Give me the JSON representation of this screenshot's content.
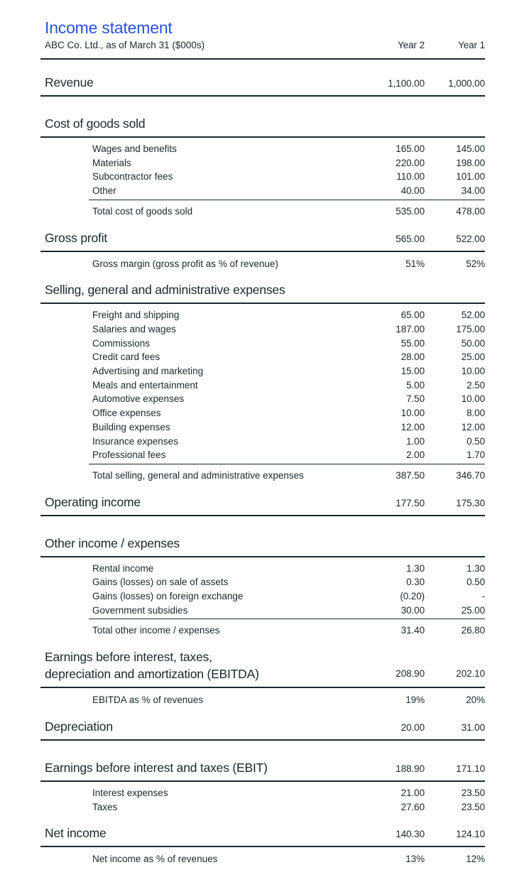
{
  "accent_color": "#2b4fdf",
  "text_color": "#182930",
  "header": {
    "title": "Income statement",
    "subtitle": "ABC Co. Ltd., as of March 31 ($000s)",
    "col_year2": "Year 2",
    "col_year1": "Year 1"
  },
  "rows": [
    {
      "type": "statement",
      "label": "Revenue",
      "y2": "1,100.00",
      "y1": "1,000.00"
    },
    {
      "type": "header",
      "label": "Cost of goods sold"
    },
    {
      "type": "detail",
      "label": "Wages and benefits",
      "y2": "165.00",
      "y1": "145.00"
    },
    {
      "type": "detail",
      "label": "Materials",
      "y2": "220.00",
      "y1": "198.00"
    },
    {
      "type": "detail",
      "label": "Subcontractor fees",
      "y2": "110.00",
      "y1": "101.00"
    },
    {
      "type": "detail",
      "label": "Other",
      "y2": "40.00",
      "y1": "34.00"
    },
    {
      "type": "total",
      "label": "Total cost of goods sold",
      "y2": "535.00",
      "y1": "478.00"
    },
    {
      "type": "statement",
      "label": "Gross profit",
      "y2": "565.00",
      "y1": "522.00"
    },
    {
      "type": "percent",
      "label": "Gross margin (gross profit as % of revenue)",
      "y2": "51%",
      "y1": "52%"
    },
    {
      "type": "header",
      "label": "Selling, general and administrative expenses"
    },
    {
      "type": "detail",
      "label": "Freight and shipping",
      "y2": "65.00",
      "y1": "52.00"
    },
    {
      "type": "detail",
      "label": "Salaries and wages",
      "y2": "187.00",
      "y1": "175.00"
    },
    {
      "type": "detail",
      "label": "Commissions",
      "y2": "55.00",
      "y1": "50.00"
    },
    {
      "type": "detail",
      "label": "Credit card fees",
      "y2": "28.00",
      "y1": "25.00"
    },
    {
      "type": "detail",
      "label": "Advertising and marketing",
      "y2": "15.00",
      "y1": "10.00"
    },
    {
      "type": "detail",
      "label": "Meals and entertainment",
      "y2": "5.00",
      "y1": "2.50"
    },
    {
      "type": "detail",
      "label": "Automotive expenses",
      "y2": "7.50",
      "y1": "10.00"
    },
    {
      "type": "detail",
      "label": "Office expenses",
      "y2": "10.00",
      "y1": "8.00"
    },
    {
      "type": "detail",
      "label": "Building expenses",
      "y2": "12.00",
      "y1": "12.00"
    },
    {
      "type": "detail",
      "label": "Insurance expenses",
      "y2": "1.00",
      "y1": "0.50"
    },
    {
      "type": "detail",
      "label": "Professional fees",
      "y2": "2.00",
      "y1": "1.70"
    },
    {
      "type": "total",
      "label": "Total selling, general and administrative expenses",
      "y2": "387.50",
      "y1": "346.70"
    },
    {
      "type": "statement",
      "label": "Operating income",
      "y2": "177.50",
      "y1": "175.30"
    },
    {
      "type": "header",
      "label": "Other income / expenses"
    },
    {
      "type": "detail",
      "label": "Rental income",
      "y2": "1.30",
      "y1": "1.30"
    },
    {
      "type": "detail",
      "label": "Gains (losses) on sale of assets",
      "y2": "0.30",
      "y1": "0.50"
    },
    {
      "type": "detail",
      "label": "Gains (losses) on foreign exchange",
      "y2": "(0.20)",
      "y1": "-"
    },
    {
      "type": "detail",
      "label": "Government subsidies",
      "y2": "30.00",
      "y1": "25.00"
    },
    {
      "type": "total",
      "label": "Total other income / expenses",
      "y2": "31.40",
      "y1": "26.80"
    },
    {
      "type": "statement2",
      "label": [
        "Earnings before interest, taxes,",
        "depreciation and amortization (EBITDA)"
      ],
      "y2": "208.90",
      "y1": "202.10"
    },
    {
      "type": "percent",
      "label": "EBITDA as % of revenues",
      "y2": "19%",
      "y1": "20%"
    },
    {
      "type": "statement",
      "label": "Depreciation",
      "y2": "20.00",
      "y1": "31.00"
    },
    {
      "type": "statement",
      "label": "Earnings before interest and taxes (EBIT)",
      "y2": "188.90",
      "y1": "171.10"
    },
    {
      "type": "detail",
      "label": "Interest expenses",
      "y2": "21.00",
      "y1": "23.50"
    },
    {
      "type": "detail",
      "label": "Taxes",
      "y2": "27.60",
      "y1": "23.50"
    },
    {
      "type": "statement",
      "label": "Net income",
      "y2": "140.30",
      "y1": "124.10"
    },
    {
      "type": "percent",
      "label": "Net income as % of revenues",
      "y2": "13%",
      "y1": "12%"
    }
  ]
}
